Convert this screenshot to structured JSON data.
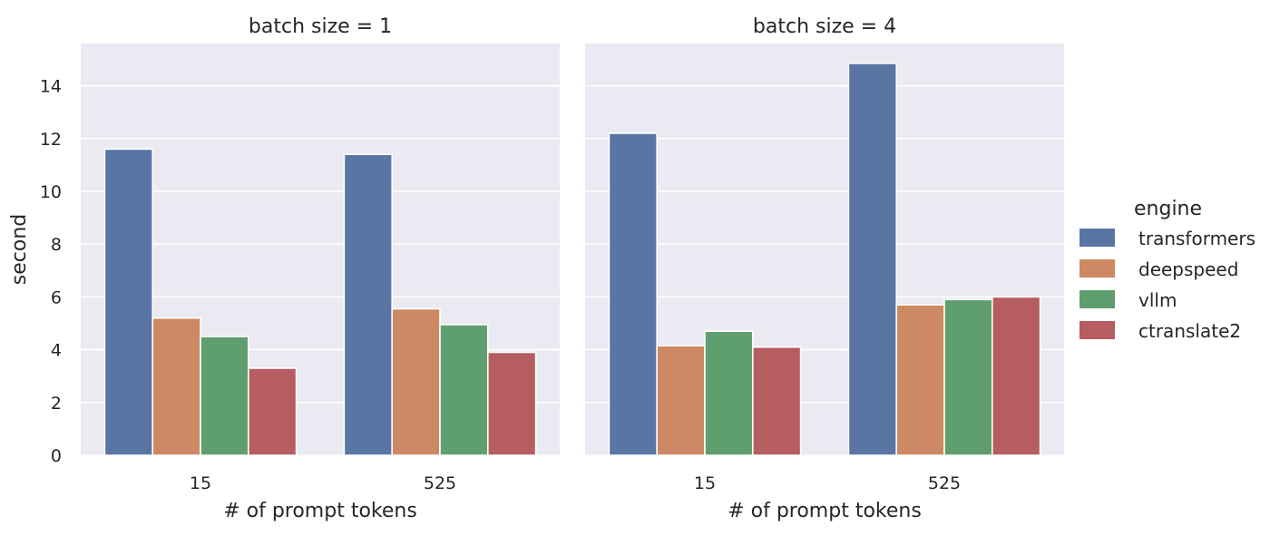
{
  "chart_data": {
    "type": "bar",
    "ylabel": "second",
    "ylim": [
      0,
      15.6
    ],
    "yticks": [
      "0",
      "2",
      "4",
      "6",
      "8",
      "10",
      "12",
      "14"
    ],
    "ytick_values": [
      0,
      2,
      4,
      6,
      8,
      10,
      12,
      14
    ],
    "grid": true,
    "legend": {
      "title": "engine",
      "placement": "right",
      "entries": [
        "transformers",
        "deepspeed",
        "vllm",
        "ctranslate2"
      ]
    },
    "colors": {
      "transformers": "#5975a4",
      "deepspeed": "#cc8963",
      "vllm": "#5f9e6e",
      "ctranslate2": "#b55d60"
    },
    "panels": [
      {
        "title": "batch size = 1",
        "xlabel": "# of prompt tokens",
        "categories": [
          "15",
          "525"
        ],
        "series": [
          {
            "name": "transformers",
            "values": [
              11.6,
              11.4
            ]
          },
          {
            "name": "deepspeed",
            "values": [
              5.2,
              5.55
            ]
          },
          {
            "name": "vllm",
            "values": [
              4.5,
              4.95
            ]
          },
          {
            "name": "ctranslate2",
            "values": [
              3.3,
              3.9
            ]
          }
        ]
      },
      {
        "title": "batch size = 4",
        "xlabel": "# of prompt tokens",
        "categories": [
          "15",
          "525"
        ],
        "series": [
          {
            "name": "transformers",
            "values": [
              12.2,
              14.85
            ]
          },
          {
            "name": "deepspeed",
            "values": [
              4.15,
              5.7
            ]
          },
          {
            "name": "vllm",
            "values": [
              4.7,
              5.9
            ]
          },
          {
            "name": "ctranslate2",
            "values": [
              4.1,
              6.0
            ]
          }
        ]
      }
    ]
  }
}
